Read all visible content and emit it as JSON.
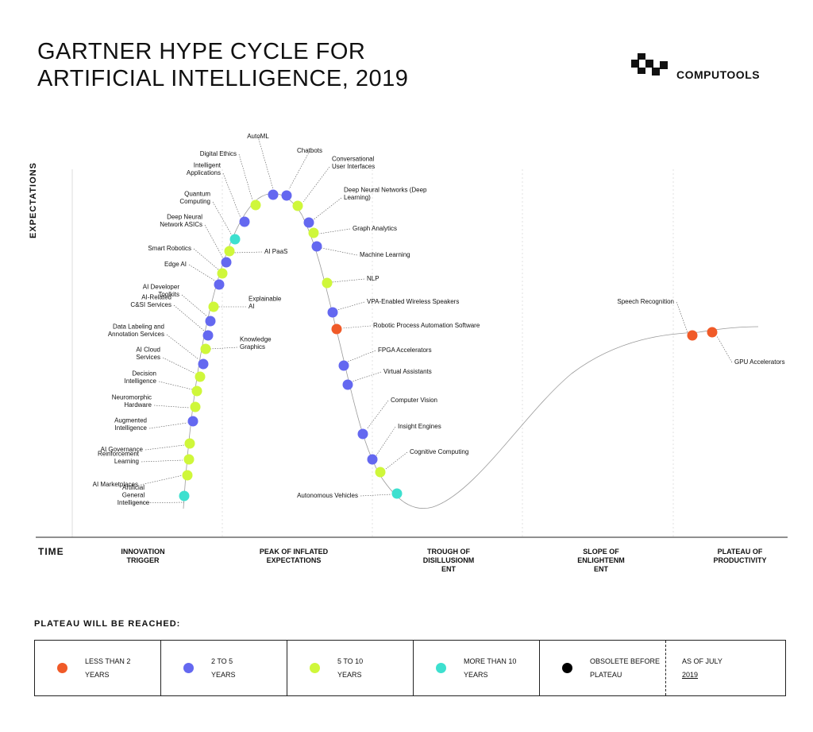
{
  "title": {
    "line1": "GARTNER HYPE CYCLE FOR",
    "line2": "ARTIFICIAL INTELLIGENCE, 2019"
  },
  "brand": {
    "name": "COMPUTOOLS",
    "icon": "computools-logo-icon"
  },
  "colors": {
    "less_than_2": "#f05a28",
    "two_to_five": "#6468f0",
    "five_to_ten": "#cff73a",
    "more_than_10": "#3de0cf",
    "obsolete": "#000000",
    "curve": "#9a9a9a",
    "text": "#111111"
  },
  "axis": {
    "y_label": "EXPECTATIONS",
    "x_label": "TIME"
  },
  "phases": [
    {
      "label_lines": [
        "INNOVATION",
        "TRIGGER"
      ]
    },
    {
      "label_lines": [
        "PEAK OF INFLATED",
        "EXPECTATIONS"
      ]
    },
    {
      "label_lines": [
        "TROUGH OF",
        "DISILLUSIONM",
        "ENT"
      ]
    },
    {
      "label_lines": [
        "SLOPE OF",
        "ENLIGHTENM",
        "ENT"
      ]
    },
    {
      "label_lines": [
        "PLATEAU OF",
        "PRODUCTIVITY"
      ]
    }
  ],
  "chart_data": {
    "type": "hype_cycle",
    "technologies": [
      {
        "name": "Artificial General Intelligence",
        "category": "more_than_10"
      },
      {
        "name": "AI Marketplaces",
        "category": "five_to_ten"
      },
      {
        "name": "Reinforcement Learning",
        "category": "five_to_ten"
      },
      {
        "name": "AI Governance",
        "category": "five_to_ten"
      },
      {
        "name": "Augmented Intelligence",
        "category": "two_to_five"
      },
      {
        "name": "Neuromorphic Hardware",
        "category": "five_to_ten"
      },
      {
        "name": "Decision Intelligence",
        "category": "five_to_ten"
      },
      {
        "name": "AI Cloud Services",
        "category": "five_to_ten"
      },
      {
        "name": "Data Labeling and Annotation Services",
        "category": "two_to_five"
      },
      {
        "name": "Knowledge Graphics",
        "category": "five_to_ten"
      },
      {
        "name": "AI-Related C&SI Services",
        "category": "two_to_five"
      },
      {
        "name": "AI Developer Toolkits",
        "category": "two_to_five"
      },
      {
        "name": "Explainable AI",
        "category": "five_to_ten"
      },
      {
        "name": "Edge AI",
        "category": "two_to_five"
      },
      {
        "name": "Smart Robotics",
        "category": "five_to_ten"
      },
      {
        "name": "Deep Neural Network ASICs",
        "category": "two_to_five"
      },
      {
        "name": "AI PaaS",
        "category": "five_to_ten"
      },
      {
        "name": "Quantum Computing",
        "category": "more_than_10"
      },
      {
        "name": "Intelligent Applications",
        "category": "two_to_five"
      },
      {
        "name": "Digital Ethics",
        "category": "five_to_ten"
      },
      {
        "name": "AutoML",
        "category": "two_to_five"
      },
      {
        "name": "Chatbots",
        "category": "two_to_five"
      },
      {
        "name": "Conversational User Interfaces",
        "category": "five_to_ten"
      },
      {
        "name": "Deep Neural Networks (Deep Learning)",
        "category": "two_to_five"
      },
      {
        "name": "Graph Analytics",
        "category": "five_to_ten"
      },
      {
        "name": "Machine Learning",
        "category": "two_to_five"
      },
      {
        "name": "NLP",
        "category": "five_to_ten"
      },
      {
        "name": "VPA-Enabled Wireless Speakers",
        "category": "two_to_five"
      },
      {
        "name": "Robotic Process Automation Software",
        "category": "less_than_2"
      },
      {
        "name": "FPGA Accelerators",
        "category": "two_to_five"
      },
      {
        "name": "Virtual Assistants",
        "category": "two_to_five"
      },
      {
        "name": "Computer Vision",
        "category": "two_to_five"
      },
      {
        "name": "Insight Engines",
        "category": "two_to_five"
      },
      {
        "name": "Cognitive Computing",
        "category": "five_to_ten"
      },
      {
        "name": "Autonomous Vehicles",
        "category": "more_than_10"
      },
      {
        "name": "Speech Recognition",
        "category": "less_than_2"
      },
      {
        "name": "GPU Accelerators",
        "category": "less_than_2"
      }
    ]
  },
  "legend": {
    "title": "PLATEAU WILL BE REACHED:",
    "items": [
      {
        "key": "less_than_2",
        "line1": "LESS THAN 2",
        "line2": "YEARS"
      },
      {
        "key": "two_to_five",
        "line1": "2 TO 5",
        "line2": "YEARS"
      },
      {
        "key": "five_to_ten",
        "line1": "5 TO 10",
        "line2": "YEARS"
      },
      {
        "key": "more_than_10",
        "line1": "MORE THAN 10",
        "line2": "YEARS"
      },
      {
        "key": "obsolete",
        "line1": "OBSOLETE BEFORE",
        "line2": "PLATEAU"
      }
    ],
    "as_of_line1": "AS OF JULY",
    "as_of_line2": "2019"
  }
}
